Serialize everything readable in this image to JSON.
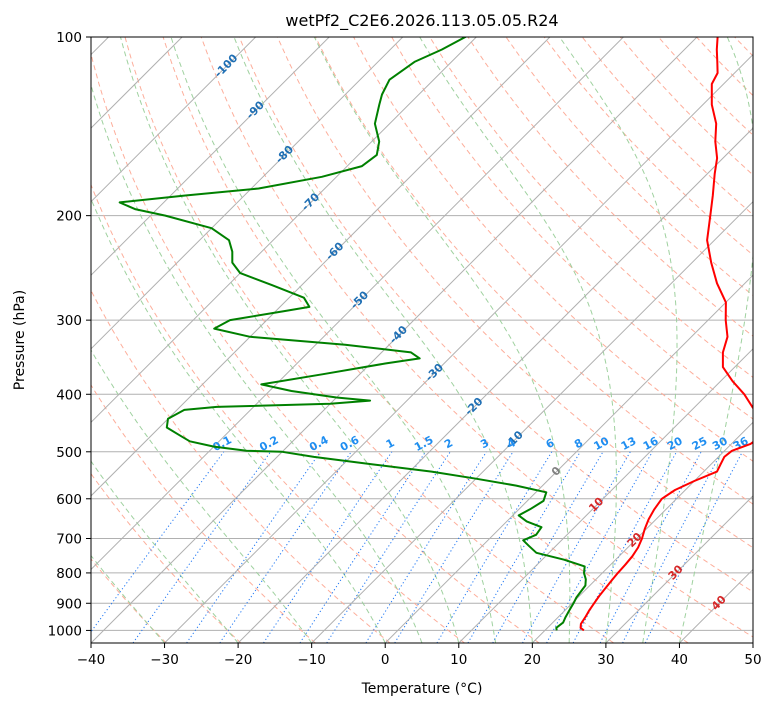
{
  "chart_data": {
    "type": "line",
    "chart_kind": "skew-T log-p diagram",
    "title": "wetPf2_C2E6.2026.113.05.05.R24",
    "xlabel": "Temperature (°C)",
    "ylabel": "Pressure (hPa)",
    "xlim": [
      -40,
      50
    ],
    "ylim": [
      1050,
      100
    ],
    "y_scale": "log",
    "grid": true,
    "x_ticks": [
      -40,
      -30,
      -20,
      -10,
      0,
      10,
      20,
      30,
      40,
      50
    ],
    "x_tick_labels": [
      "−40",
      "−30",
      "−20",
      "−10",
      "0",
      "10",
      "20",
      "30",
      "40",
      "50"
    ],
    "y_ticks": [
      100,
      200,
      300,
      400,
      500,
      600,
      700,
      800,
      900,
      1000
    ],
    "y_tick_labels": [
      "100",
      "200",
      "300",
      "400",
      "500",
      "600",
      "700",
      "800",
      "900",
      "1000"
    ],
    "colors": {
      "temperature": "#ff0000",
      "dewpoint": "#008000",
      "isotherm": "#b0b0b0",
      "dry_adiabat": "#fdae9b",
      "moist_adiabat": "#9fd19f",
      "mixing_ratio": "#1f77f4",
      "isotherm_label": "#1f6fb4",
      "mixing_ratio_label": "#1f8ef1",
      "zero_label": "#808080",
      "warm_label": "#d62728"
    },
    "isotherm_labels_cold": [
      {
        "t": -100,
        "p": 112,
        "text": "-100"
      },
      {
        "t": -90,
        "p": 133,
        "text": "-90"
      },
      {
        "t": -80,
        "p": 158,
        "text": "-80"
      },
      {
        "t": -70,
        "p": 190,
        "text": "-70"
      },
      {
        "t": -60,
        "p": 230,
        "text": "-60"
      },
      {
        "t": -50,
        "p": 278,
        "text": "-50"
      },
      {
        "t": -40,
        "p": 318,
        "text": "-40"
      },
      {
        "t": -30,
        "p": 368,
        "text": "-30"
      },
      {
        "t": -20,
        "p": 420,
        "text": "-20"
      },
      {
        "t": -10,
        "p": 478,
        "text": "-10"
      }
    ],
    "isotherm_labels_warm": [
      {
        "t": 0,
        "p": 540,
        "text": "0",
        "kind": "zero"
      },
      {
        "t": 10,
        "p": 615,
        "text": "10",
        "kind": "warm"
      },
      {
        "t": 20,
        "p": 705,
        "text": "20",
        "kind": "warm"
      },
      {
        "t": 30,
        "p": 800,
        "text": "30",
        "kind": "warm"
      },
      {
        "t": 40,
        "p": 900,
        "text": "40",
        "kind": "warm"
      }
    ],
    "mixing_ratio_lines_g_per_kg": [
      0.1,
      0.2,
      0.4,
      0.6,
      1,
      1.5,
      2,
      3,
      4,
      6,
      8,
      10,
      13,
      16,
      20,
      25,
      30,
      36
    ],
    "mixing_ratio_label_texts": [
      "0.1",
      "0.2",
      "0.4",
      "0.6",
      "1",
      "1.5",
      "2",
      "3",
      "4",
      "6",
      "8",
      "10",
      "13",
      "16",
      "20",
      "25",
      "30",
      "36"
    ],
    "dry_adiabats_K": [
      230,
      240,
      250,
      260,
      270,
      280,
      290,
      300,
      310,
      320,
      330,
      340,
      350,
      360,
      370,
      380,
      390,
      400,
      410,
      420,
      430,
      440,
      450,
      460,
      470,
      480,
      490,
      500,
      510,
      520,
      530,
      540,
      550,
      560
    ],
    "moist_adiabats_start_C": [
      -30,
      -20,
      -10,
      0,
      5,
      10,
      15,
      20,
      25,
      30,
      35,
      40
    ],
    "series": [
      {
        "name": "Temperature",
        "color": "#ff0000",
        "points": [
          [
            1000,
            25.3
          ],
          [
            990,
            24.5
          ],
          [
            975,
            24.0
          ],
          [
            950,
            23.7
          ],
          [
            925,
            23.3
          ],
          [
            900,
            23.0
          ],
          [
            875,
            22.7
          ],
          [
            850,
            22.5
          ],
          [
            825,
            22.3
          ],
          [
            800,
            22.1
          ],
          [
            775,
            22.0
          ],
          [
            750,
            21.8
          ],
          [
            725,
            21.4
          ],
          [
            700,
            20.7
          ],
          [
            675,
            19.8
          ],
          [
            650,
            19.0
          ],
          [
            625,
            18.4
          ],
          [
            600,
            18.0
          ],
          [
            580,
            18.6
          ],
          [
            560,
            20.0
          ],
          [
            540,
            21.8
          ],
          [
            525,
            21.3
          ],
          [
            510,
            20.8
          ],
          [
            498,
            21.0
          ],
          [
            485,
            22.6
          ],
          [
            470,
            23.0
          ],
          [
            455,
            22.3
          ],
          [
            440,
            20.6
          ],
          [
            420,
            17.8
          ],
          [
            400,
            15.0
          ],
          [
            380,
            11.6
          ],
          [
            360,
            8.4
          ],
          [
            340,
            6.4
          ],
          [
            320,
            4.9
          ],
          [
            300,
            2.4
          ],
          [
            280,
            0.0
          ],
          [
            260,
            -3.8
          ],
          [
            240,
            -7.4
          ],
          [
            220,
            -11.0
          ],
          [
            200,
            -13.9
          ],
          [
            185,
            -16.3
          ],
          [
            170,
            -19.0
          ],
          [
            160,
            -20.8
          ],
          [
            150,
            -23.3
          ],
          [
            140,
            -25.6
          ],
          [
            130,
            -28.8
          ],
          [
            120,
            -31.6
          ],
          [
            115,
            -32.3
          ],
          [
            110,
            -33.9
          ],
          [
            105,
            -35.6
          ],
          [
            100,
            -37.2
          ],
          [
            97,
            -38.0
          ]
        ]
      },
      {
        "name": "Dewpoint",
        "color": "#008000",
        "points": [
          [
            1000,
            21.6
          ],
          [
            990,
            21.2
          ],
          [
            970,
            21.4
          ],
          [
            950,
            21.0
          ],
          [
            925,
            20.6
          ],
          [
            900,
            20.2
          ],
          [
            880,
            19.8
          ],
          [
            860,
            19.6
          ],
          [
            840,
            19.4
          ],
          [
            820,
            18.6
          ],
          [
            800,
            17.5
          ],
          [
            780,
            16.7
          ],
          [
            760,
            13.0
          ],
          [
            740,
            8.3
          ],
          [
            720,
            6.3
          ],
          [
            705,
            4.8
          ],
          [
            690,
            5.8
          ],
          [
            670,
            5.5
          ],
          [
            655,
            2.7
          ],
          [
            640,
            0.8
          ],
          [
            625,
            1.5
          ],
          [
            605,
            2.2
          ],
          [
            585,
            1.4
          ],
          [
            570,
            -3.6
          ],
          [
            555,
            -10.0
          ],
          [
            540,
            -17.0
          ],
          [
            525,
            -26.0
          ],
          [
            510,
            -35.0
          ],
          [
            500,
            -40.0
          ],
          [
            498,
            -45.0
          ],
          [
            490,
            -50.0
          ],
          [
            480,
            -54.0
          ],
          [
            470,
            -56.0
          ],
          [
            455,
            -59.0
          ],
          [
            440,
            -60.0
          ],
          [
            425,
            -59.0
          ],
          [
            420,
            -55.0
          ],
          [
            415,
            -40.0
          ],
          [
            410,
            -35.0
          ],
          [
            405,
            -40.0
          ],
          [
            395,
            -47.0
          ],
          [
            385,
            -52.0
          ],
          [
            370,
            -45.0
          ],
          [
            355,
            -38.0
          ],
          [
            348,
            -34.0
          ],
          [
            340,
            -36.0
          ],
          [
            330,
            -46.0
          ],
          [
            320,
            -60.0
          ],
          [
            310,
            -66.0
          ],
          [
            300,
            -65.0
          ],
          [
            290,
            -59.0
          ],
          [
            285,
            -56.0
          ],
          [
            275,
            -58.0
          ],
          [
            262,
            -64.0
          ],
          [
            250,
            -70.0
          ],
          [
            240,
            -72.5
          ],
          [
            230,
            -74.0
          ],
          [
            220,
            -76.0
          ],
          [
            210,
            -80.0
          ],
          [
            200,
            -88.0
          ],
          [
            195,
            -93.0
          ],
          [
            190,
            -96.0
          ],
          [
            185,
            -88.0
          ],
          [
            180,
            -79.0
          ],
          [
            172,
            -72.0
          ],
          [
            165,
            -68.0
          ],
          [
            158,
            -67.5
          ],
          [
            150,
            -69.0
          ],
          [
            140,
            -72.0
          ],
          [
            130,
            -74.0
          ],
          [
            125,
            -75.0
          ],
          [
            118,
            -76.0
          ],
          [
            110,
            -75.0
          ],
          [
            105,
            -73.0
          ],
          [
            100,
            -71.5
          ],
          [
            97,
            -71.0
          ]
        ]
      }
    ]
  }
}
